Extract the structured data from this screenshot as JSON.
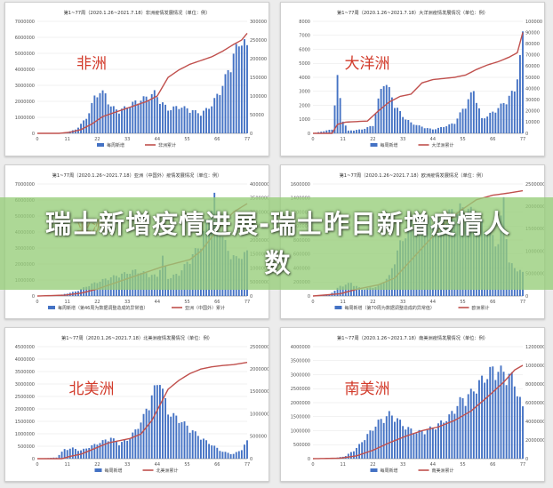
{
  "headline": "瑞士新增疫情进展-瑞士昨日新增疫情人数",
  "chart_data": [
    {
      "type": "bar+line",
      "title": "第1~77周（2020.1.26~2021.7.18）非洲疫情发展情况（单位：例）",
      "overlay_label": "非洲",
      "y_left_ticks": [
        "0",
        "1000000",
        "2000000",
        "3000000",
        "4000000",
        "5000000",
        "6000000",
        "7000000"
      ],
      "y_right_ticks": [
        "0",
        "50000",
        "100000",
        "150000",
        "200000",
        "250000",
        "300000"
      ],
      "y_left_max": 7000000,
      "y_right_max": 300000,
      "x_ticks": [
        "0",
        "11",
        "22",
        "33",
        "44",
        "55",
        "66",
        "77"
      ],
      "legend": [
        "每周新增",
        "非洲累计"
      ],
      "colors": {
        "bar": "#4472c4",
        "line": "#c0504d"
      },
      "bar_keys": [
        [
          0,
          0
        ],
        [
          5,
          0
        ],
        [
          10,
          0.02
        ],
        [
          14,
          0.25
        ],
        [
          18,
          1
        ],
        [
          21,
          2.4
        ],
        [
          23,
          2.8
        ],
        [
          25,
          2.6
        ],
        [
          27,
          1.8
        ],
        [
          30,
          1.5
        ],
        [
          33,
          1.8
        ],
        [
          36,
          2.1
        ],
        [
          40,
          2.4
        ],
        [
          43,
          2.7
        ],
        [
          45,
          2.2
        ],
        [
          48,
          1.6
        ],
        [
          52,
          1.8
        ],
        [
          56,
          1.6
        ],
        [
          60,
          1.3
        ],
        [
          64,
          1.9
        ],
        [
          68,
          3.2
        ],
        [
          72,
          5.2
        ],
        [
          75,
          6.4
        ],
        [
          77,
          5.6
        ]
      ],
      "line_keys": [
        [
          0,
          0
        ],
        [
          8,
          0
        ],
        [
          12,
          3
        ],
        [
          16,
          10
        ],
        [
          20,
          25
        ],
        [
          24,
          45
        ],
        [
          28,
          55
        ],
        [
          32,
          65
        ],
        [
          36,
          75
        ],
        [
          40,
          85
        ],
        [
          44,
          100
        ],
        [
          48,
          150
        ],
        [
          52,
          170
        ],
        [
          56,
          185
        ],
        [
          60,
          195
        ],
        [
          64,
          205
        ],
        [
          68,
          220
        ],
        [
          72,
          238
        ],
        [
          75,
          250
        ],
        [
          77,
          268
        ]
      ]
    },
    {
      "type": "bar+line",
      "title": "第1~77周（2020.1.26~2021.7.18）大洋洲疫情发展情况（单位：例）",
      "overlay_label": "大洋洲",
      "y_left_ticks": [
        "0",
        "1000",
        "2000",
        "3000",
        "4000",
        "5000",
        "6000",
        "7000",
        "8000"
      ],
      "y_right_ticks": [
        "0",
        "10000",
        "20000",
        "30000",
        "40000",
        "50000",
        "60000",
        "70000",
        "80000",
        "90000",
        "100000"
      ],
      "y_left_max": 8000,
      "y_right_max": 100000,
      "x_ticks": [
        "0",
        "11",
        "22",
        "33",
        "44",
        "55",
        "66",
        "77"
      ],
      "legend": [
        "每周新增",
        "大洋洲累计"
      ],
      "colors": {
        "bar": "#4472c4",
        "line": "#c0504d"
      },
      "bar_keys": [
        [
          0,
          0
        ],
        [
          7,
          0.3
        ],
        [
          9,
          4.2
        ],
        [
          11,
          1.0
        ],
        [
          13,
          0.2
        ],
        [
          18,
          0.3
        ],
        [
          22,
          0.6
        ],
        [
          24,
          2.5
        ],
        [
          26,
          4.1
        ],
        [
          28,
          3.3
        ],
        [
          30,
          2.2
        ],
        [
          33,
          1.3
        ],
        [
          36,
          0.8
        ],
        [
          40,
          0.5
        ],
        [
          44,
          0.3
        ],
        [
          48,
          0.5
        ],
        [
          52,
          0.8
        ],
        [
          56,
          2.2
        ],
        [
          59,
          3.3
        ],
        [
          62,
          1.1
        ],
        [
          66,
          1.6
        ],
        [
          70,
          2.3
        ],
        [
          74,
          3.3
        ],
        [
          76,
          5.7
        ],
        [
          77,
          7.4
        ]
      ],
      "line_keys": [
        [
          0,
          0
        ],
        [
          7,
          0
        ],
        [
          9,
          8
        ],
        [
          12,
          10
        ],
        [
          20,
          11
        ],
        [
          24,
          20
        ],
        [
          28,
          28
        ],
        [
          32,
          33
        ],
        [
          36,
          35
        ],
        [
          40,
          45
        ],
        [
          44,
          48
        ],
        [
          48,
          49
        ],
        [
          52,
          50
        ],
        [
          56,
          52
        ],
        [
          60,
          57
        ],
        [
          64,
          61
        ],
        [
          68,
          64
        ],
        [
          72,
          68
        ],
        [
          75,
          72
        ],
        [
          77,
          90
        ]
      ]
    },
    {
      "type": "bar+line",
      "title": "第1~77周（2020.1.26~2021.7.18）亚洲（中国外）疫情发展情况（单位：例）",
      "overlay_label": "亚洲",
      "y_left_ticks": [
        "0",
        "1000000",
        "2000000",
        "3000000",
        "4000000",
        "5000000",
        "6000000",
        "7000000"
      ],
      "y_right_ticks": [
        "0",
        "5000000",
        "10000000",
        "15000000",
        "20000000",
        "25000000",
        "30000000",
        "35000000",
        "40000000"
      ],
      "y_left_max": 7000000,
      "y_right_max": 40000000,
      "x_ticks": [
        "0",
        "11",
        "22",
        "33",
        "44",
        "55",
        "66",
        "77"
      ],
      "legend": [
        "每周新增（第46周为数据调整造成的异常值）",
        "亚洲（中国外）累计"
      ],
      "colors": {
        "bar": "#4472c4",
        "line": "#c0504d"
      },
      "bar_keys": [
        [
          0,
          0
        ],
        [
          8,
          0.05
        ],
        [
          14,
          0.3
        ],
        [
          20,
          0.8
        ],
        [
          26,
          1.2
        ],
        [
          32,
          1.5
        ],
        [
          36,
          1.7
        ],
        [
          40,
          1.5
        ],
        [
          44,
          1.3
        ],
        [
          46,
          2.6
        ],
        [
          48,
          1.2
        ],
        [
          52,
          1.5
        ],
        [
          56,
          2.5
        ],
        [
          60,
          3.5
        ],
        [
          63,
          5.5
        ],
        [
          65,
          6.5
        ],
        [
          67,
          4.5
        ],
        [
          70,
          3.0
        ],
        [
          73,
          2.5
        ],
        [
          77,
          2.9
        ]
      ],
      "line_keys": [
        [
          0,
          0
        ],
        [
          10,
          0.3
        ],
        [
          16,
          1
        ],
        [
          22,
          2.5
        ],
        [
          28,
          4.5
        ],
        [
          34,
          6.5
        ],
        [
          40,
          8.5
        ],
        [
          46,
          10.5
        ],
        [
          52,
          12
        ],
        [
          56,
          13
        ],
        [
          60,
          16
        ],
        [
          64,
          21
        ],
        [
          68,
          26
        ],
        [
          72,
          30
        ],
        [
          77,
          33
        ]
      ]
    },
    {
      "type": "bar+line",
      "title": "第1~77周（2020.1.26~2021.7.18）欧洲疫情发展情况（单位：例）",
      "overlay_label": "",
      "y_left_ticks": [
        "0",
        "200000",
        "400000",
        "600000",
        "800000",
        "1000000",
        "1200000",
        "1400000",
        "1600000"
      ],
      "y_right_ticks": [
        "0",
        "5000000",
        "10000000",
        "15000000",
        "20000000",
        "25000000"
      ],
      "y_left_max": 1600000,
      "y_right_max": 25000000,
      "x_ticks": [
        "0",
        "11",
        "22",
        "33",
        "44",
        "55",
        "66",
        "77"
      ],
      "legend": [
        "每周新增（第70周为数据调整造成的异常值）",
        "欧洲累计"
      ],
      "colors": {
        "bar": "#4472c4",
        "line": "#c0504d"
      },
      "bar_keys": [
        [
          0,
          0
        ],
        [
          6,
          0.02
        ],
        [
          10,
          0.15
        ],
        [
          14,
          0.2
        ],
        [
          18,
          0.1
        ],
        [
          24,
          0.15
        ],
        [
          28,
          0.3
        ],
        [
          32,
          0.8
        ],
        [
          36,
          1.1
        ],
        [
          40,
          1.2
        ],
        [
          44,
          1.1
        ],
        [
          48,
          1.2
        ],
        [
          52,
          1.3
        ],
        [
          56,
          1.35
        ],
        [
          60,
          1.2
        ],
        [
          64,
          1.0
        ],
        [
          68,
          0.8
        ],
        [
          70,
          1.5
        ],
        [
          72,
          0.5
        ],
        [
          77,
          0.35
        ]
      ],
      "line_keys": [
        [
          0,
          0
        ],
        [
          10,
          0.5
        ],
        [
          16,
          1.5
        ],
        [
          24,
          2.5
        ],
        [
          30,
          4
        ],
        [
          36,
          8
        ],
        [
          42,
          12
        ],
        [
          48,
          16
        ],
        [
          54,
          19
        ],
        [
          60,
          21.5
        ],
        [
          66,
          22.5
        ],
        [
          72,
          23
        ],
        [
          77,
          23.5
        ]
      ]
    },
    {
      "type": "bar+line",
      "title": "第1~77周（2020.1.26~2021.7.18）北美洲疫情发展情况（单位：例）",
      "overlay_label": "北美洲",
      "y_left_ticks": [
        "0",
        "500000",
        "1000000",
        "1500000",
        "2000000",
        "2500000",
        "3000000",
        "3500000",
        "4000000",
        "4500000"
      ],
      "y_right_ticks": [
        "0",
        "500000",
        "1000000",
        "1500000",
        "2000000",
        "2500000"
      ],
      "y_left_max": 4500000,
      "y_right_max": 2500000,
      "x_ticks": [
        "0",
        "11",
        "22",
        "33",
        "44",
        "55",
        "66",
        "77"
      ],
      "legend": [
        "每周新增",
        "北美洲累计"
      ],
      "colors": {
        "bar": "#4472c4",
        "line": "#c0504d"
      },
      "bar_keys": [
        [
          0,
          0
        ],
        [
          7,
          0.05
        ],
        [
          10,
          0.4
        ],
        [
          13,
          0.45
        ],
        [
          16,
          0.35
        ],
        [
          20,
          0.55
        ],
        [
          24,
          0.75
        ],
        [
          27,
          0.9
        ],
        [
          30,
          0.65
        ],
        [
          33,
          0.8
        ],
        [
          36,
          1.2
        ],
        [
          39,
          1.8
        ],
        [
          42,
          2.7
        ],
        [
          44,
          3.2
        ],
        [
          45,
          3.55
        ],
        [
          46,
          2.9
        ],
        [
          48,
          2.0
        ],
        [
          52,
          1.7
        ],
        [
          56,
          1.3
        ],
        [
          60,
          0.9
        ],
        [
          64,
          0.6
        ],
        [
          68,
          0.3
        ],
        [
          72,
          0.2
        ],
        [
          75,
          0.4
        ],
        [
          77,
          0.75
        ]
      ],
      "line_keys": [
        [
          0,
          0
        ],
        [
          9,
          0
        ],
        [
          12,
          0.05
        ],
        [
          16,
          0.1
        ],
        [
          20,
          0.2
        ],
        [
          26,
          0.35
        ],
        [
          30,
          0.4
        ],
        [
          34,
          0.45
        ],
        [
          38,
          0.55
        ],
        [
          42,
          0.85
        ],
        [
          45,
          1.2
        ],
        [
          48,
          1.55
        ],
        [
          52,
          1.75
        ],
        [
          56,
          1.9
        ],
        [
          60,
          2.0
        ],
        [
          64,
          2.05
        ],
        [
          68,
          2.08
        ],
        [
          72,
          2.1
        ],
        [
          77,
          2.15
        ]
      ]
    },
    {
      "type": "bar+line",
      "title": "第1~77周（2020.1.26~2021.7.18）南美洲疫情发展情况（单位：例）",
      "overlay_label": "南美洲",
      "y_left_ticks": [
        "0",
        "500000",
        "1000000",
        "1500000",
        "2000000",
        "2500000",
        "3000000",
        "3500000",
        "4000000"
      ],
      "y_right_ticks": [
        "0",
        "2000000",
        "4000000",
        "6000000",
        "8000000",
        "10000000",
        "12000000"
      ],
      "y_left_max": 4000000,
      "y_right_max": 12000000,
      "x_ticks": [
        "0",
        "11",
        "22",
        "33",
        "44",
        "55",
        "66",
        "77"
      ],
      "legend": [
        "每周新增",
        "南美洲累计"
      ],
      "colors": {
        "bar": "#4472c4",
        "line": "#c0504d"
      },
      "bar_keys": [
        [
          0,
          0
        ],
        [
          8,
          0.02
        ],
        [
          12,
          0.1
        ],
        [
          16,
          0.4
        ],
        [
          20,
          0.9
        ],
        [
          24,
          1.4
        ],
        [
          28,
          1.7
        ],
        [
          30,
          1.6
        ],
        [
          34,
          1.2
        ],
        [
          38,
          1.0
        ],
        [
          42,
          1.1
        ],
        [
          46,
          1.3
        ],
        [
          50,
          1.6
        ],
        [
          54,
          2.2
        ],
        [
          58,
          2.5
        ],
        [
          62,
          3.0
        ],
        [
          66,
          3.4
        ],
        [
          70,
          3.3
        ],
        [
          73,
          3.1
        ],
        [
          75,
          2.6
        ],
        [
          77,
          1.9
        ]
      ],
      "line_keys": [
        [
          0,
          0
        ],
        [
          10,
          0.05
        ],
        [
          16,
          0.3
        ],
        [
          22,
          0.9
        ],
        [
          28,
          1.7
        ],
        [
          34,
          2.4
        ],
        [
          40,
          3.0
        ],
        [
          46,
          3.4
        ],
        [
          52,
          4.1
        ],
        [
          58,
          5.1
        ],
        [
          64,
          6.6
        ],
        [
          70,
          8.2
        ],
        [
          74,
          9.5
        ],
        [
          77,
          10
        ]
      ]
    }
  ]
}
